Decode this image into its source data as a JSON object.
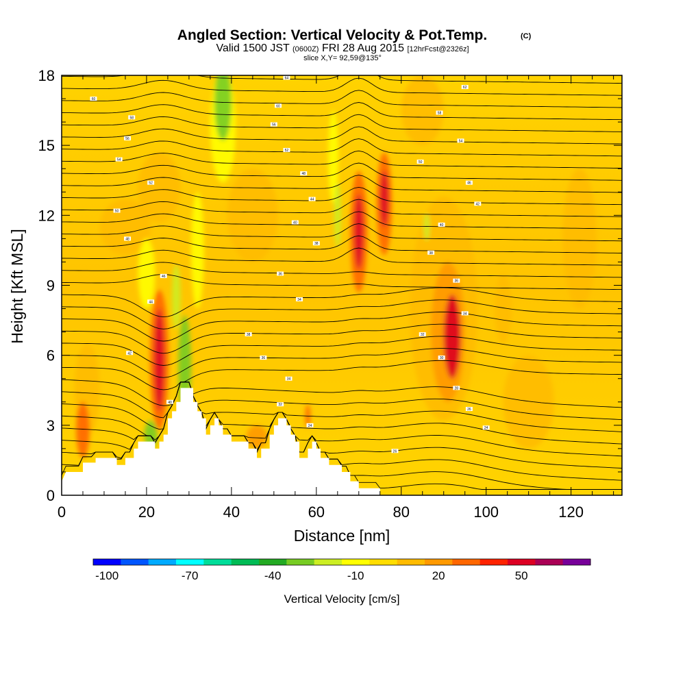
{
  "chart_data": {
    "type": "heatmap",
    "title": "Angled Section: Vertical Velocity & Pot.Temp.",
    "title_mark": "(C)",
    "subtitle": {
      "valid": "Valid 1500 JST",
      "utc": "(0600Z)",
      "date": "FRI 28 Aug 2015",
      "forecast": "[12hrFcst@2326z]"
    },
    "slice": "slice X,Y= 92,59@135°",
    "xlabel": "Distance [nm]",
    "ylabel": "Height [Kft MSL]",
    "xlim": [
      0,
      132
    ],
    "ylim": [
      0,
      18
    ],
    "x_ticks": [
      "0",
      "20",
      "40",
      "60",
      "80",
      "100",
      "120"
    ],
    "y_ticks": [
      "0",
      "3",
      "6",
      "9",
      "12",
      "15",
      "18"
    ],
    "colorbar": {
      "label": "Vertical Velocity [cm/s]",
      "tick_labels": [
        "-100",
        "-70",
        "-40",
        "-10",
        "20",
        "50"
      ],
      "colors": [
        "#0000ff",
        "#0055ff",
        "#00aaff",
        "#00ffff",
        "#00dd99",
        "#00bb55",
        "#22aa22",
        "#77cc22",
        "#ccee22",
        "#ffff00",
        "#ffdd00",
        "#ffbb00",
        "#ff9900",
        "#ff6600",
        "#ff2200",
        "#dd0022",
        "#aa0055",
        "#770099"
      ]
    },
    "terrain_kft": [
      [
        0,
        0.6
      ],
      [
        1,
        1.0
      ],
      [
        5,
        1.0
      ],
      [
        5,
        1.4
      ],
      [
        8,
        1.4
      ],
      [
        8,
        1.6
      ],
      [
        13,
        1.6
      ],
      [
        13,
        1.3
      ],
      [
        15,
        1.3
      ],
      [
        15,
        1.6
      ],
      [
        17,
        1.6
      ],
      [
        17,
        2.0
      ],
      [
        18,
        2.0
      ],
      [
        18,
        2.3
      ],
      [
        22,
        2.3
      ],
      [
        22,
        2.0
      ],
      [
        23,
        2.0
      ],
      [
        23,
        2.3
      ],
      [
        24,
        2.3
      ],
      [
        24,
        2.6
      ],
      [
        25,
        2.6
      ],
      [
        25,
        3.3
      ],
      [
        26,
        3.3
      ],
      [
        26,
        3.6
      ],
      [
        27,
        3.6
      ],
      [
        27,
        4.0
      ],
      [
        28,
        4.0
      ],
      [
        28,
        4.6
      ],
      [
        31,
        4.6
      ],
      [
        31,
        4.0
      ],
      [
        32,
        4.0
      ],
      [
        32,
        3.6
      ],
      [
        33,
        3.6
      ],
      [
        33,
        3.3
      ],
      [
        34,
        3.3
      ],
      [
        34,
        2.6
      ],
      [
        35,
        2.6
      ],
      [
        35,
        3.0
      ],
      [
        36,
        3.0
      ],
      [
        36,
        3.3
      ],
      [
        37,
        3.3
      ],
      [
        37,
        3.0
      ],
      [
        38,
        3.0
      ],
      [
        38,
        2.6
      ],
      [
        40,
        2.6
      ],
      [
        40,
        2.3
      ],
      [
        44,
        2.3
      ],
      [
        44,
        2.0
      ],
      [
        46,
        2.0
      ],
      [
        46,
        1.6
      ],
      [
        47,
        1.6
      ],
      [
        47,
        2.0
      ],
      [
        49,
        2.0
      ],
      [
        49,
        2.6
      ],
      [
        50,
        2.6
      ],
      [
        50,
        3.0
      ],
      [
        51,
        3.0
      ],
      [
        51,
        3.3
      ],
      [
        53,
        3.3
      ],
      [
        53,
        3.0
      ],
      [
        54,
        3.0
      ],
      [
        54,
        2.6
      ],
      [
        55,
        2.6
      ],
      [
        55,
        2.3
      ],
      [
        56,
        2.3
      ],
      [
        56,
        1.6
      ],
      [
        58,
        1.6
      ],
      [
        58,
        2.0
      ],
      [
        59,
        2.0
      ],
      [
        59,
        2.3
      ],
      [
        60,
        2.3
      ],
      [
        60,
        2.0
      ],
      [
        61,
        2.0
      ],
      [
        61,
        1.6
      ],
      [
        63,
        1.6
      ],
      [
        63,
        1.3
      ],
      [
        66,
        1.3
      ],
      [
        66,
        1.0
      ],
      [
        68,
        1.0
      ],
      [
        68,
        0.6
      ],
      [
        70,
        0.6
      ],
      [
        70,
        0.3
      ],
      [
        75,
        0.3
      ],
      [
        75,
        0
      ],
      [
        132,
        0
      ]
    ],
    "velocity_features": [
      {
        "x": 23,
        "y": 5.8,
        "rx": 1.2,
        "ry": 2.2,
        "value": 50
      },
      {
        "x": 23,
        "y": 5.8,
        "rx": 2.2,
        "ry": 3.0,
        "value": 30
      },
      {
        "x": 29,
        "y": 5.5,
        "rx": 1.5,
        "ry": 2.2,
        "value": -35
      },
      {
        "x": 27,
        "y": 8.5,
        "rx": 1.0,
        "ry": 1.4,
        "value": -20
      },
      {
        "x": 21,
        "y": 2.6,
        "rx": 1.5,
        "ry": 0.6,
        "value": -35
      },
      {
        "x": 38,
        "y": 16.8,
        "rx": 2.0,
        "ry": 1.6,
        "value": -35
      },
      {
        "x": 38,
        "y": 15.8,
        "rx": 3.0,
        "ry": 2.4,
        "value": -15
      },
      {
        "x": 70,
        "y": 11.3,
        "rx": 1.1,
        "ry": 1.6,
        "value": 50
      },
      {
        "x": 70,
        "y": 11.3,
        "rx": 2.0,
        "ry": 2.6,
        "value": 25
      },
      {
        "x": 76,
        "y": 12.7,
        "rx": 1.0,
        "ry": 1.2,
        "value": 50
      },
      {
        "x": 76,
        "y": 12.5,
        "rx": 1.8,
        "ry": 2.2,
        "value": 25
      },
      {
        "x": 65,
        "y": 12.0,
        "rx": 0.8,
        "ry": 1.4,
        "value": -25
      },
      {
        "x": 86,
        "y": 11.5,
        "rx": 0.7,
        "ry": 0.6,
        "value": -25
      },
      {
        "x": 92,
        "y": 6.8,
        "rx": 2.0,
        "ry": 1.8,
        "value": 45
      },
      {
        "x": 91,
        "y": 7.0,
        "rx": 4.0,
        "ry": 3.0,
        "value": 22
      },
      {
        "x": 90,
        "y": 8.0,
        "rx": 8.0,
        "ry": 4.8,
        "value": 10
      },
      {
        "x": 5,
        "y": 2.8,
        "rx": 1.6,
        "ry": 1.2,
        "value": 25
      },
      {
        "x": 6,
        "y": 4.5,
        "rx": 3.0,
        "ry": 2.0,
        "value": 8
      },
      {
        "x": 58,
        "y": 3.4,
        "rx": 0.6,
        "ry": 0.5,
        "value": 25
      },
      {
        "x": 46,
        "y": 2.5,
        "rx": 2.5,
        "ry": 0.5,
        "value": 18
      },
      {
        "x": 45,
        "y": 12.0,
        "rx": 6.0,
        "ry": 2.0,
        "value": 10
      },
      {
        "x": 23,
        "y": 13.2,
        "rx": 5.0,
        "ry": 1.5,
        "value": 12
      },
      {
        "x": 15,
        "y": 11.5,
        "rx": 6.0,
        "ry": 1.2,
        "value": 10
      },
      {
        "x": 85,
        "y": 16.5,
        "rx": 5.0,
        "ry": 1.5,
        "value": 10
      },
      {
        "x": 122,
        "y": 11.0,
        "rx": 4.0,
        "ry": 3.0,
        "value": 8
      },
      {
        "x": 20,
        "y": 9.5,
        "rx": 2.0,
        "ry": 1.5,
        "value": -8
      },
      {
        "x": 32,
        "y": 10.5,
        "rx": 1.5,
        "ry": 2.5,
        "value": -8
      },
      {
        "x": 64,
        "y": 14.5,
        "rx": 1.2,
        "ry": 2.0,
        "value": -8
      },
      {
        "x": 104,
        "y": 8.0,
        "rx": 2.0,
        "ry": 1.5,
        "value": 8
      },
      {
        "x": 110,
        "y": 4.0,
        "rx": 6.0,
        "ry": 2.0,
        "value": 6
      }
    ],
    "isentrope_labels": [
      {
        "text": "60",
        "x": 7.5,
        "y": 17.0
      },
      {
        "text": "58",
        "x": 16.5,
        "y": 16.2
      },
      {
        "text": "56",
        "x": 15.5,
        "y": 15.3
      },
      {
        "text": "54",
        "x": 13.5,
        "y": 14.4
      },
      {
        "text": "52",
        "x": 21.0,
        "y": 13.4
      },
      {
        "text": "50",
        "x": 13.0,
        "y": 12.2
      },
      {
        "text": "48",
        "x": 15.5,
        "y": 11.0
      },
      {
        "text": "46",
        "x": 24.0,
        "y": 9.4
      },
      {
        "text": "44",
        "x": 21.0,
        "y": 8.3
      },
      {
        "text": "42",
        "x": 16.0,
        "y": 6.1
      },
      {
        "text": "40",
        "x": 25.5,
        "y": 4.0
      },
      {
        "text": "38",
        "x": 44.0,
        "y": 6.9
      },
      {
        "text": "36",
        "x": 47.5,
        "y": 5.9
      },
      {
        "text": "34",
        "x": 53.5,
        "y": 5.0
      },
      {
        "text": "32",
        "x": 51.5,
        "y": 3.9
      },
      {
        "text": "24",
        "x": 58.5,
        "y": 3.0
      },
      {
        "text": "26",
        "x": 78.5,
        "y": 1.9
      },
      {
        "text": "64",
        "x": 53.0,
        "y": 17.9
      },
      {
        "text": "62",
        "x": 95.0,
        "y": 17.5
      },
      {
        "text": "60",
        "x": 51.0,
        "y": 16.7
      },
      {
        "text": "58",
        "x": 89.0,
        "y": 16.4
      },
      {
        "text": "56",
        "x": 50.0,
        "y": 15.9
      },
      {
        "text": "54",
        "x": 94.0,
        "y": 15.2
      },
      {
        "text": "52",
        "x": 53.0,
        "y": 14.8
      },
      {
        "text": "50",
        "x": 84.5,
        "y": 14.3
      },
      {
        "text": "48",
        "x": 57.0,
        "y": 13.8
      },
      {
        "text": "46",
        "x": 96.0,
        "y": 13.4
      },
      {
        "text": "44",
        "x": 59.0,
        "y": 12.7
      },
      {
        "text": "42",
        "x": 98.0,
        "y": 12.5
      },
      {
        "text": "40",
        "x": 55.0,
        "y": 11.7
      },
      {
        "text": "40",
        "x": 89.5,
        "y": 11.6
      },
      {
        "text": "38",
        "x": 60.0,
        "y": 10.8
      },
      {
        "text": "38",
        "x": 87.0,
        "y": 10.4
      },
      {
        "text": "36",
        "x": 51.5,
        "y": 9.5
      },
      {
        "text": "36",
        "x": 93.0,
        "y": 9.2
      },
      {
        "text": "34",
        "x": 56.0,
        "y": 8.4
      },
      {
        "text": "34",
        "x": 95.0,
        "y": 7.8
      },
      {
        "text": "32",
        "x": 85.0,
        "y": 6.9
      },
      {
        "text": "30",
        "x": 89.5,
        "y": 5.9
      },
      {
        "text": "28",
        "x": 93.0,
        "y": 4.6
      },
      {
        "text": "26",
        "x": 96.0,
        "y": 3.7
      },
      {
        "text": "24",
        "x": 100.0,
        "y": 2.9
      }
    ]
  }
}
